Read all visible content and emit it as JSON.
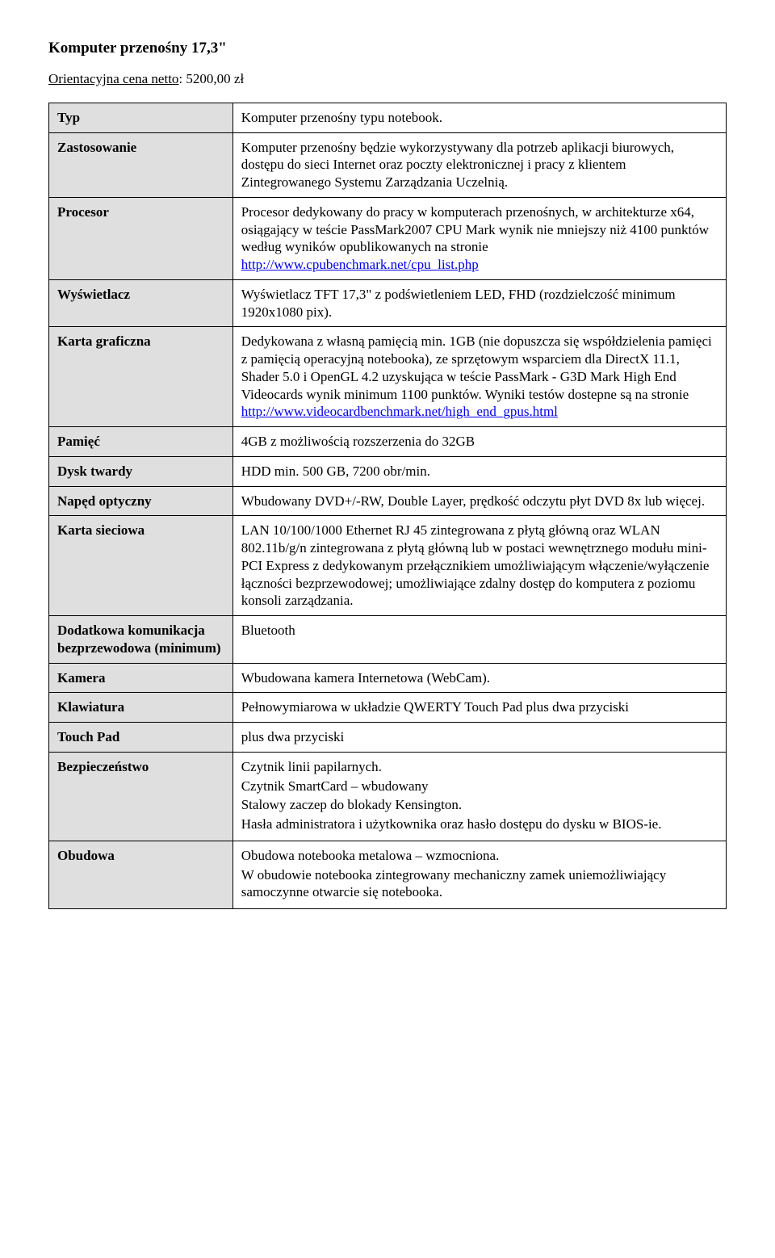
{
  "title": "Komputer przenośny 17,3\"",
  "price_label": "Orientacyjna cena netto",
  "price_value": "5200,00 zł",
  "rows": [
    {
      "label": "Typ",
      "value": "Komputer przenośny typu notebook."
    },
    {
      "label": "Zastosowanie",
      "value": "Komputer przenośny będzie wykorzystywany dla potrzeb aplikacji biurowych, dostępu do sieci Internet oraz poczty elektronicznej i pracy z klientem Zintegrowanego Systemu Zarządzania Uczelnią."
    },
    {
      "label": "Procesor",
      "value_pre": "Procesor dedykowany do pracy w komputerach przenośnych, w architekturze x64, osiągający w teście PassMark2007 CPU Mark wynik nie mniejszy niż 4100 punktów według wyników opublikowanych na stronie ",
      "link_text": "http://www.cpubenchmark.net/cpu_list.php"
    },
    {
      "label": "Wyświetlacz",
      "value": "Wyświetlacz TFT 17,3\" z podświetleniem LED, FHD (rozdzielczość minimum 1920x1080 pix)."
    },
    {
      "label": "Karta graficzna",
      "value_pre": "Dedykowana z własną pamięcią min. 1GB (nie dopuszcza się współdzielenia pamięci z pamięcią operacyjną notebooka), ze sprzętowym wsparciem dla DirectX 11.1, Shader 5.0 i OpenGL 4.2 uzyskująca w teście PassMark - G3D Mark High End Videocards wynik minimum 1100 punktów. Wyniki testów dostepne są na stronie ",
      "link_text": "http://www.videocardbenchmark.net/high_end_gpus.html"
    },
    {
      "label": "Pamięć",
      "value": "4GB z możliwością rozszerzenia do 32GB"
    },
    {
      "label": "Dysk twardy",
      "value": "HDD min. 500 GB, 7200 obr/min."
    },
    {
      "label": "Napęd optyczny",
      "value": "Wbudowany DVD+/-RW, Double Layer, prędkość odczytu płyt DVD 8x lub więcej."
    },
    {
      "label": "Karta sieciowa",
      "value": "LAN 10/100/1000 Ethernet RJ 45 zintegrowana z płytą główną oraz WLAN 802.11b/g/n zintegrowana z płytą główną lub w postaci wewnętrznego modułu mini-PCI Express z dedykowanym przełącznikiem umożliwiającym włączenie/wyłączenie łączności bezprzewodowej; umożliwiające zdalny dostęp do komputera z poziomu konsoli zarządzania."
    },
    {
      "label": "Dodatkowa komunikacja bezprzewodowa (minimum)",
      "value": "Bluetooth"
    },
    {
      "label": "Kamera",
      "value": "Wbudowana kamera Internetowa (WebCam)."
    },
    {
      "label": "Klawiatura",
      "value": "Pełnowymiarowa w układzie QWERTY Touch Pad plus dwa przyciski"
    },
    {
      "label": "Touch Pad",
      "value": "plus dwa przyciski"
    },
    {
      "label": "Bezpieczeństwo",
      "lines": [
        "Czytnik linii papilarnych.",
        "Czytnik SmartCard – wbudowany",
        "Stalowy zaczep do blokady Kensington.",
        "Hasła administratora i użytkownika oraz hasło dostępu do dysku w BIOS-ie."
      ]
    },
    {
      "label": "Obudowa",
      "lines": [
        "Obudowa notebooka metalowa – wzmocniona.",
        "W obudowie notebooka zintegrowany mechaniczny zamek uniemożliwiający samoczynne otwarcie się notebooka."
      ]
    }
  ]
}
